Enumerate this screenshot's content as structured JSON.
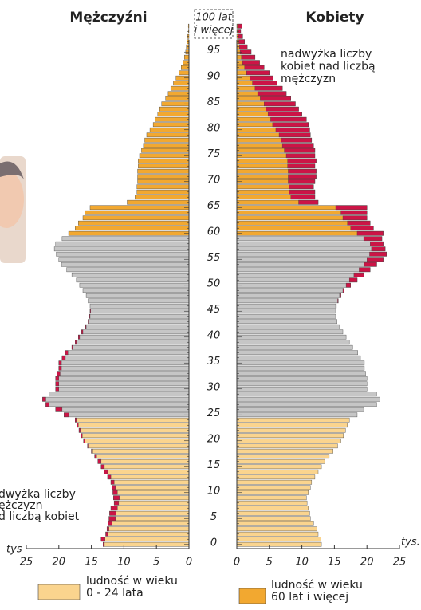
{
  "chart_data": {
    "type": "pyramid",
    "left_title": "Mężczyźni",
    "right_title": "Kobiety",
    "categories": [
      "0",
      null,
      null,
      null,
      null,
      "5",
      null,
      null,
      null,
      null,
      "10",
      null,
      null,
      null,
      null,
      "15",
      null,
      null,
      null,
      null,
      "20",
      null,
      null,
      null,
      null,
      "25",
      null,
      null,
      null,
      null,
      "30",
      null,
      null,
      null,
      null,
      "35",
      null,
      null,
      null,
      null,
      "40",
      null,
      null,
      null,
      null,
      "45",
      null,
      null,
      null,
      null,
      "50",
      null,
      null,
      null,
      null,
      "55",
      null,
      null,
      null,
      null,
      "60",
      null,
      null,
      null,
      null,
      "65",
      null,
      null,
      null,
      null,
      "70",
      null,
      null,
      null,
      null,
      "75",
      null,
      null,
      null,
      null,
      "80",
      null,
      null,
      null,
      null,
      "85",
      null,
      null,
      null,
      null,
      "90",
      null,
      null,
      null,
      null,
      "95",
      null,
      null,
      null,
      null,
      null
    ],
    "oldest_label": [
      "100 lat",
      "i więcej"
    ],
    "series": [
      {
        "name": "Mężczyźni",
        "side": "left",
        "values": [
          13.2,
          13.5,
          12.8,
          12.6,
          12.4,
          12.3,
          12.2,
          12.0,
          11.5,
          11.6,
          11.7,
          11.8,
          12.0,
          12.5,
          13.0,
          13.5,
          14.0,
          14.5,
          15.0,
          15.6,
          16.2,
          16.6,
          16.9,
          17.2,
          17.5,
          19.2,
          20.5,
          22.0,
          22.5,
          21.5,
          20.5,
          20.5,
          20.5,
          20.3,
          20.0,
          20.0,
          19.5,
          19.0,
          18.0,
          17.5,
          17.0,
          16.5,
          15.9,
          15.5,
          15.3,
          15.2,
          15.2,
          15.5,
          15.8,
          16.3,
          16.8,
          17.3,
          18.0,
          18.8,
          19.6,
          20.0,
          20.4,
          20.7,
          20.5,
          19.5,
          18.5,
          17.5,
          17.0,
          16.3,
          16.0,
          15.2,
          9.5,
          8.3,
          8.0,
          8.0,
          7.9,
          7.9,
          7.9,
          7.8,
          7.8,
          7.6,
          7.3,
          7.0,
          6.8,
          6.5,
          6.0,
          5.5,
          5.2,
          4.8,
          4.5,
          4.2,
          3.6,
          3.2,
          2.8,
          2.4,
          2.0,
          1.5,
          1.2,
          0.9,
          0.7,
          0.5,
          0.4,
          0.3,
          0.2,
          0.1,
          0.1
        ]
      },
      {
        "name": "Kobiety",
        "side": "right",
        "values": [
          13.0,
          12.9,
          12.5,
          12.3,
          11.8,
          11.3,
          11.2,
          11.0,
          10.8,
          10.7,
          11.0,
          11.3,
          11.5,
          12.0,
          12.5,
          13.0,
          13.5,
          14.2,
          14.8,
          15.5,
          16.0,
          16.4,
          16.7,
          17.0,
          17.3,
          18.5,
          19.5,
          21.5,
          22.0,
          21.5,
          20.0,
          20.0,
          20.0,
          19.8,
          19.6,
          19.6,
          19.0,
          18.6,
          17.8,
          17.3,
          16.8,
          16.3,
          15.8,
          15.4,
          15.2,
          15.1,
          15.3,
          15.6,
          16.0,
          16.5,
          17.5,
          18.5,
          19.5,
          20.5,
          21.5,
          22.5,
          23.0,
          22.8,
          22.5,
          22.3,
          22.5,
          21.0,
          20.5,
          20.0,
          20.0,
          20.0,
          12.5,
          12.0,
          12.0,
          11.8,
          12.0,
          12.2,
          12.2,
          12.0,
          12.2,
          12.0,
          12.0,
          11.8,
          11.5,
          11.3,
          11.2,
          11.0,
          10.7,
          10.0,
          9.5,
          9.0,
          8.3,
          7.6,
          7.0,
          6.2,
          5.6,
          5.0,
          4.2,
          3.5,
          2.8,
          2.2,
          1.6,
          1.2,
          0.9,
          0.6,
          0.8
        ]
      }
    ],
    "groups": [
      {
        "start": 0,
        "color": "#fad48e",
        "label": [
          "ludność w wieku",
          "0 - 24 lata"
        ]
      },
      {
        "start": 25,
        "color": "#c6c6c6"
      },
      {
        "start": 60,
        "color": "#f2a830",
        "label": [
          "ludność w wieku",
          "60 lat i więcej"
        ]
      }
    ],
    "excess_color": "#cc1446",
    "annotations": [
      {
        "side": "right",
        "lines": [
          "nadwyżka liczby",
          "kobiet nad liczbą",
          "mężczyzn"
        ]
      },
      {
        "side": "left",
        "lines": [
          "dwyżka liczby",
          "ężczyzn",
          "d liczbą kobiet"
        ]
      }
    ],
    "xlim": [
      0,
      25
    ],
    "xticks": [
      0,
      5,
      10,
      15,
      20,
      25
    ],
    "left_unit": "tys",
    "right_unit": "tys."
  }
}
